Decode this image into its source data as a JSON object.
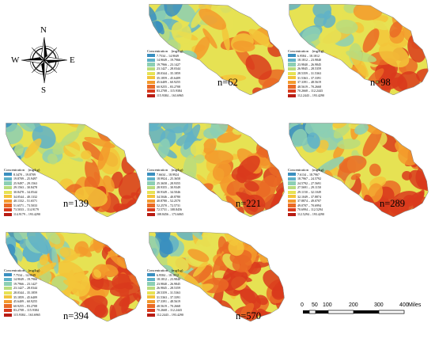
{
  "compass": {
    "n": "N",
    "s": "S",
    "e": "E",
    "w": "W"
  },
  "legend_title": "Concentration　(mg/kg)",
  "palette": [
    "#3a8fc0",
    "#5fb1c8",
    "#8ccfb4",
    "#b9dc7e",
    "#e6e253",
    "#f3c53a",
    "#f39a2c",
    "#ea6a24",
    "#d93a1c",
    "#b81c14"
  ],
  "panels": [
    {
      "id": "n62",
      "label": "n=62",
      "legend": [
        "7.7534 – 14.9049",
        "14.9049 – 19.7966",
        "19.7966 – 23.1427",
        "23.1427 – 28.0344",
        "28.0344 – 35.1859",
        "35.1859 – 45.6409",
        "45.6409 – 60.9255",
        "60.9255 – 83.2708",
        "83.2708 – 115.9384",
        "115.9384 – 163.6965"
      ]
    },
    {
      "id": "n98",
      "label": "n=98",
      "legend": [
        "6.9584 – 18.1812",
        "18.1812 – 23.9840",
        "23.9840 – 26.9845",
        "26.9845 – 28.5359",
        "28.5359 – 31.5363",
        "31.5363 – 37.3391",
        "37.3391 – 48.5619",
        "48.5619 – 70.2668",
        "70.2668 – 112.2443",
        "112.2443 – 193.4290"
      ]
    },
    {
      "id": "n139",
      "label": "n=139",
      "legend": [
        "8.3470 – 19.8709",
        "19.8709 – 25.9497",
        "25.9497 – 29.1563",
        "29.1563 – 30.8478",
        "30.8478 – 34.0544",
        "34.0544 – 40.1332",
        "40.1332 – 51.6571",
        "51.6571 – 73.5033",
        "73.5033 – 114.9179",
        "114.9179 – 193.4290"
      ]
    },
    {
      "id": "n221",
      "label": "n=221",
      "legend": [
        "7.6634 – 18.9924",
        "18.9924 – 25.3658",
        "25.3658 – 28.9355",
        "28.9355 – 30.9349",
        "30.9349 – 34.5046",
        "34.5046 – 40.8780",
        "40.8780 – 52.2570",
        "52.2570 – 72.5731",
        "72.5731 – 108.8456",
        "108.8456 – 173.6065"
      ]
    },
    {
      "id": "n289",
      "label": "n=289",
      "legend": [
        "7.6134 – 18.7967",
        "18.7967 – 24.5792",
        "24.5792 – 27.5691",
        "27.5691 – 29.1150",
        "29.1150 – 32.1049",
        "32.1049 – 37.8874",
        "37.8874 – 49.0707",
        "49.0707 – 70.6994",
        "70.6994 – 112.5294",
        "112.5294 – 193.4290"
      ]
    },
    {
      "id": "n394",
      "label": "n=394",
      "legend": [
        "7.7534 – 14.9049",
        "14.9049 – 19.7966",
        "19.7966 – 23.1427",
        "23.1427 – 28.0344",
        "28.0344 – 35.1859",
        "35.1859 – 45.6409",
        "45.6409 – 60.9255",
        "60.9255 – 83.2708",
        "83.2708 – 115.9384",
        "115.9384 – 163.6965"
      ]
    },
    {
      "id": "n570",
      "label": "n=570",
      "legend": [
        "6.9584 – 18.1812",
        "18.1812 – 23.9840",
        "23.9840 – 26.9845",
        "26.9845 – 28.5359",
        "28.5359 – 31.5363",
        "31.5363 – 37.3391",
        "37.3391 – 48.5619",
        "48.5619 – 70.2668",
        "70.2668 – 112.2443",
        "112.2443 – 193.4290"
      ]
    }
  ],
  "scalebar": {
    "ticks": [
      "0",
      "50",
      "100",
      "200",
      "300",
      "400"
    ],
    "unit": "Miles"
  }
}
